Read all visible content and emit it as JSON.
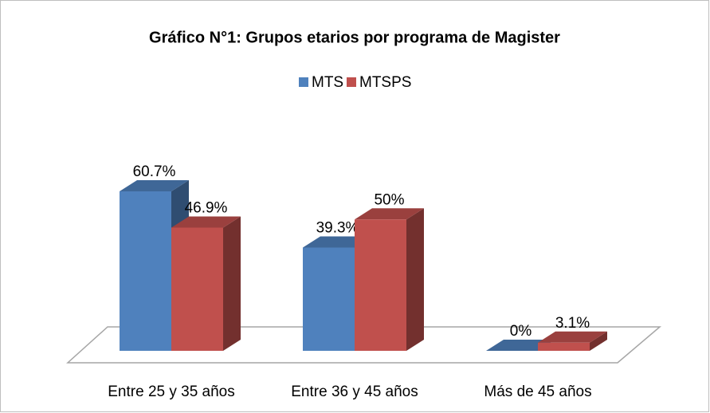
{
  "chart_data": {
    "type": "bar3d",
    "title": "Gráfico N°1: Grupos etarios por programa de Magister",
    "categories": [
      "Entre 25 y 35 años",
      "Entre 36 y 45 años",
      "Más de 45 años"
    ],
    "series": [
      {
        "name": "MTS",
        "color": "#4f81bd",
        "values": [
          60.7,
          39.3,
          0
        ],
        "value_labels": [
          "60.7%",
          "39.3%",
          "0%"
        ]
      },
      {
        "name": "MTSPS",
        "color": "#c0504d",
        "values": [
          46.9,
          50,
          3.1
        ],
        "value_labels": [
          "46.9%",
          "50%",
          "3.1%"
        ]
      }
    ],
    "legend": "top"
  }
}
